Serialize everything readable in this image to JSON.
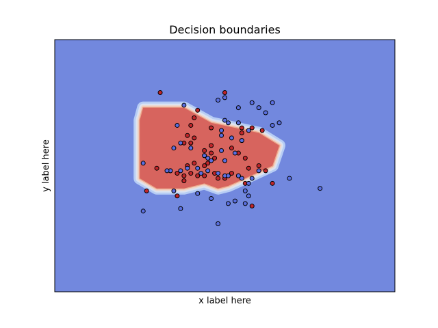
{
  "chart_data": {
    "type": "scatter",
    "title": "Decision boundaries",
    "xlabel": "x label here",
    "ylabel": "y label here",
    "xlim": [
      0,
      100
    ],
    "ylim": [
      0,
      100
    ],
    "grid": false,
    "ticks_visible": false,
    "colors": {
      "background_class": "#7288de",
      "region_class": "#d7645e",
      "point_blue": "#5a6fe0",
      "point_red": "#c0262a",
      "point_edge": "#000000"
    },
    "decision_region": {
      "class": "red",
      "polygon": [
        [
          26,
          73
        ],
        [
          38,
          73
        ],
        [
          46,
          67
        ],
        [
          53,
          65
        ],
        [
          60,
          63
        ],
        [
          66,
          58
        ],
        [
          64,
          50
        ],
        [
          56,
          45
        ],
        [
          51,
          42
        ],
        [
          48,
          41
        ],
        [
          44,
          43
        ],
        [
          38,
          41
        ],
        [
          30,
          41
        ],
        [
          25,
          45
        ],
        [
          25,
          68
        ]
      ]
    },
    "series": [
      {
        "color": "red",
        "points": [
          [
            31,
            79
          ],
          [
            50,
            79
          ],
          [
            40,
            66
          ],
          [
            42,
            72
          ],
          [
            41,
            69
          ],
          [
            46,
            65
          ],
          [
            39,
            62
          ],
          [
            41,
            61
          ],
          [
            40,
            59
          ],
          [
            38,
            59
          ],
          [
            44,
            56
          ],
          [
            46,
            58
          ],
          [
            46,
            55
          ],
          [
            44,
            54
          ],
          [
            47,
            53
          ],
          [
            55,
            65
          ],
          [
            58,
            65
          ],
          [
            61,
            64
          ],
          [
            55,
            63
          ],
          [
            55,
            60
          ],
          [
            52,
            57
          ],
          [
            54,
            55
          ],
          [
            56,
            53
          ],
          [
            45,
            51
          ],
          [
            44,
            50
          ],
          [
            41,
            51
          ],
          [
            39,
            50
          ],
          [
            30,
            49
          ],
          [
            34,
            48
          ],
          [
            40,
            47
          ],
          [
            42,
            46
          ],
          [
            44,
            46
          ],
          [
            47,
            47
          ],
          [
            36,
            47
          ],
          [
            38,
            46
          ],
          [
            48,
            45
          ],
          [
            50,
            45
          ],
          [
            52,
            47
          ],
          [
            57,
            49
          ],
          [
            60,
            50
          ],
          [
            54,
            46
          ],
          [
            56,
            43
          ],
          [
            38,
            44
          ],
          [
            62,
            48
          ],
          [
            27,
            40
          ],
          [
            36,
            38
          ],
          [
            58,
            34
          ],
          [
            64,
            43
          ]
        ]
      },
      {
        "color": "blue",
        "points": [
          [
            50,
            77
          ],
          [
            48,
            76
          ],
          [
            38,
            74
          ],
          [
            54,
            73
          ],
          [
            58,
            75
          ],
          [
            60,
            73
          ],
          [
            62,
            71
          ],
          [
            64,
            75
          ],
          [
            66,
            67
          ],
          [
            64,
            66
          ],
          [
            57,
            64
          ],
          [
            54,
            67
          ],
          [
            51,
            67
          ],
          [
            50,
            68
          ],
          [
            36,
            66
          ],
          [
            49,
            64
          ],
          [
            49,
            62
          ],
          [
            52,
            61
          ],
          [
            55,
            60
          ],
          [
            37,
            59
          ],
          [
            40,
            57
          ],
          [
            35,
            57
          ],
          [
            49,
            56
          ],
          [
            53,
            55
          ],
          [
            44,
            54
          ],
          [
            45,
            53
          ],
          [
            46,
            52
          ],
          [
            50,
            52
          ],
          [
            42,
            49
          ],
          [
            39,
            49
          ],
          [
            37,
            48
          ],
          [
            34,
            48
          ],
          [
            26,
            51
          ],
          [
            33,
            48
          ],
          [
            43,
            47
          ],
          [
            45,
            48
          ],
          [
            48,
            47
          ],
          [
            50,
            46
          ],
          [
            51,
            46
          ],
          [
            54,
            46
          ],
          [
            55,
            45
          ],
          [
            58,
            45
          ],
          [
            60,
            48
          ],
          [
            57,
            43
          ],
          [
            69,
            45
          ],
          [
            78,
            41
          ],
          [
            56,
            40
          ],
          [
            35,
            40
          ],
          [
            42,
            39
          ],
          [
            46,
            37
          ],
          [
            51,
            35
          ],
          [
            53,
            36
          ],
          [
            57,
            38
          ],
          [
            56,
            35
          ],
          [
            37,
            33
          ],
          [
            26,
            32
          ],
          [
            48,
            27
          ]
        ]
      }
    ]
  }
}
